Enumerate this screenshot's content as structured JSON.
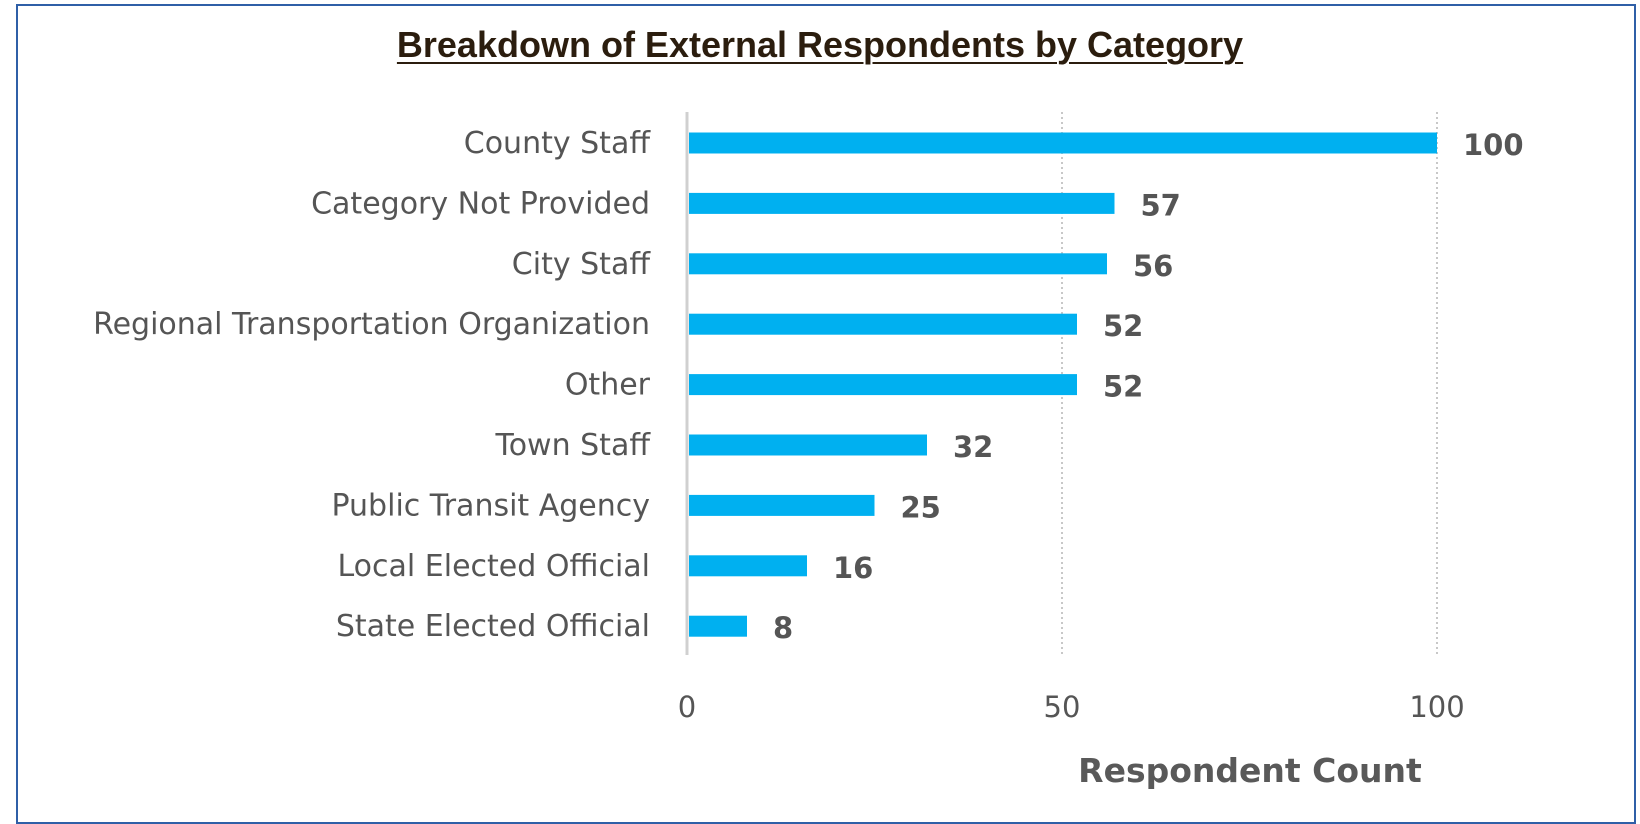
{
  "chart_data": {
    "type": "bar",
    "orientation": "horizontal",
    "title": "Breakdown of External Respondents by Category",
    "xlabel": "Respondent Count",
    "ylabel": "",
    "categories": [
      "County Staff",
      "Category Not Provided",
      "City Staff",
      "Regional Transportation Organization",
      "Other",
      "Town Staff",
      "Public Transit Agency",
      "Local Elected Official",
      "State Elected Official"
    ],
    "values": [
      100,
      57,
      56,
      52,
      52,
      32,
      25,
      16,
      8
    ],
    "xlim": [
      0,
      100
    ],
    "xticks": [
      0,
      50,
      100
    ],
    "xtick_labels": [
      "0",
      "50",
      "100"
    ],
    "grid": "vertical dotted",
    "data_labels": true,
    "bar_color": "#00b0f0",
    "title_color": "#2b1d0e",
    "border_color": "#2f5fa7"
  }
}
